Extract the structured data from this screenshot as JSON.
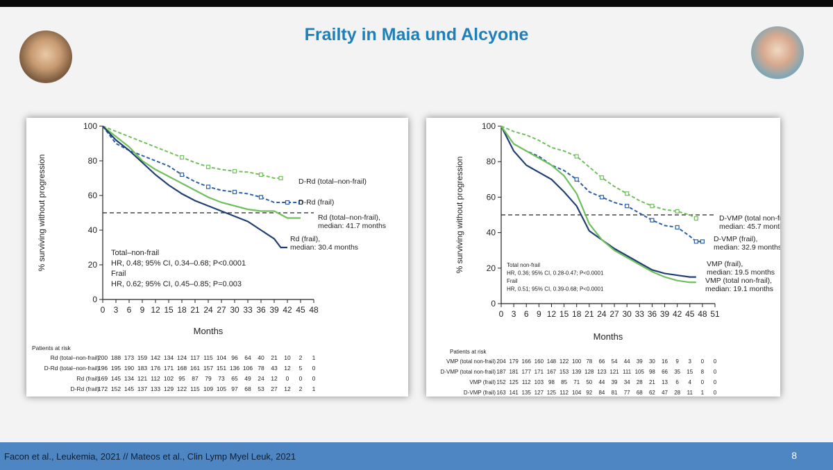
{
  "slide": {
    "title": "Frailty in Maia und Alcyone",
    "citation": "Facon et al., Leukemia, 2021 // Mateos et al., Clin Lymp Myel Leuk, 2021",
    "page_number": "8"
  },
  "chart_data": [
    {
      "type": "line",
      "title": "",
      "xlabel": "Months",
      "ylabel": "% surviving without progression",
      "xlim": [
        0,
        48
      ],
      "ylim": [
        0,
        100
      ],
      "x_ticks": [
        0,
        3,
        6,
        9,
        12,
        15,
        18,
        21,
        24,
        27,
        30,
        33,
        36,
        39,
        42,
        45,
        48
      ],
      "y_ticks": [
        0,
        20,
        40,
        60,
        80,
        100
      ],
      "reference_line_y": 50,
      "series": [
        {
          "name": "D-Rd (total–non-frail)",
          "color": "#6fbf5a",
          "style": "dashed-markers",
          "x": [
            0,
            3,
            6,
            9,
            12,
            15,
            18,
            21,
            24,
            27,
            30,
            33,
            36,
            39,
            40.5
          ],
          "y": [
            100,
            97,
            94,
            91,
            88,
            85,
            82,
            79,
            76.5,
            75,
            74,
            73.5,
            72,
            70,
            70
          ]
        },
        {
          "name": "D-Rd (frail)",
          "color": "#2a5ea8",
          "style": "dashed-markers",
          "x": [
            0,
            3,
            6,
            9,
            12,
            15,
            18,
            21,
            24,
            27,
            30,
            33,
            36,
            39,
            42,
            45
          ],
          "y": [
            100,
            90,
            86,
            83,
            80,
            77,
            72,
            68,
            65,
            63,
            62,
            61,
            59,
            56,
            56,
            56
          ]
        },
        {
          "name": "Rd (total–non-frail)",
          "color": "#6fbf5a",
          "style": "solid",
          "x": [
            0,
            3,
            6,
            9,
            12,
            15,
            18,
            21,
            24,
            27,
            30,
            33,
            36,
            39,
            42,
            45
          ],
          "y": [
            100,
            94,
            88,
            80,
            75,
            71,
            67,
            63,
            59,
            56,
            54,
            52,
            51,
            51,
            47,
            47
          ]
        },
        {
          "name": "Rd (frail)",
          "color": "#1f3f73",
          "style": "solid",
          "x": [
            0,
            3,
            6,
            9,
            12,
            15,
            18,
            21,
            24,
            27,
            30,
            33,
            36,
            39,
            40.5,
            42
          ],
          "y": [
            100,
            92,
            86,
            79,
            72,
            66,
            61,
            57,
            54,
            51,
            48,
            45,
            40,
            35,
            30,
            30
          ]
        }
      ],
      "series_labels": [
        {
          "lines": [
            "D-Rd (total–non-frail)"
          ]
        },
        {
          "lines": [
            "D-Rd (frail)"
          ]
        },
        {
          "lines": [
            "Rd (total–non-frail),",
            "median: 41.7 months"
          ]
        },
        {
          "lines": [
            "Rd (frail),",
            "median: 30.4 months"
          ]
        }
      ],
      "annotations": [
        "Total–non-frail",
        "HR, 0.48; 95% CI, 0.34–0.68; P<0.0001",
        "Frail",
        "HR, 0.62; 95% CI, 0.45–0.85; P=0.003"
      ],
      "risk_table": {
        "header": "Patients at risk",
        "rows": [
          {
            "label": "Rd (total–non-frail)",
            "values": [
              200,
              188,
              173,
              159,
              142,
              134,
              124,
              117,
              115,
              104,
              96,
              64,
              40,
              21,
              10,
              2,
              1
            ]
          },
          {
            "label": "D-Rd (total–non-frail)",
            "values": [
              196,
              195,
              190,
              183,
              176,
              171,
              168,
              161,
              157,
              151,
              136,
              106,
              78,
              43,
              12,
              5,
              0
            ]
          },
          {
            "label": "Rd (frail)",
            "values": [
              169,
              145,
              134,
              121,
              112,
              102,
              95,
              87,
              79,
              73,
              65,
              49,
              24,
              12,
              0,
              0,
              0
            ]
          },
          {
            "label": "D-Rd (frail)",
            "values": [
              172,
              152,
              145,
              137,
              133,
              129,
              122,
              115,
              109,
              105,
              97,
              68,
              53,
              27,
              12,
              2,
              1
            ]
          }
        ]
      }
    },
    {
      "type": "line",
      "title": "",
      "xlabel": "Months",
      "ylabel": "% surviving without progression",
      "xlim": [
        0,
        51
      ],
      "ylim": [
        0,
        100
      ],
      "x_ticks": [
        0,
        3,
        6,
        9,
        12,
        15,
        18,
        21,
        24,
        27,
        30,
        33,
        36,
        39,
        42,
        45,
        48,
        51
      ],
      "y_ticks": [
        0,
        20,
        40,
        60,
        80,
        100
      ],
      "reference_line_y": 50,
      "series": [
        {
          "name": "D-VMP (total non-frail)",
          "color": "#6fbf5a",
          "style": "dashed-markers",
          "x": [
            0,
            3,
            6,
            9,
            12,
            15,
            18,
            21,
            24,
            27,
            30,
            33,
            36,
            39,
            42,
            45,
            46.5
          ],
          "y": [
            100,
            97,
            95,
            92,
            88,
            86,
            83,
            77,
            71,
            66,
            62,
            58,
            55,
            53,
            52,
            50,
            48
          ]
        },
        {
          "name": "D-VMP (frail)",
          "color": "#2a5ea8",
          "style": "dashed-markers",
          "x": [
            0,
            3,
            6,
            9,
            12,
            15,
            18,
            21,
            24,
            27,
            30,
            33,
            36,
            39,
            42,
            45,
            46.5,
            48
          ],
          "y": [
            100,
            90,
            86,
            83,
            78,
            75,
            70,
            63,
            60,
            57,
            55,
            51,
            47,
            44,
            43,
            38,
            35,
            35
          ]
        },
        {
          "name": "VMP (frail)",
          "color": "#1f3f73",
          "style": "solid",
          "x": [
            0,
            3,
            6,
            9,
            12,
            15,
            18,
            21,
            24,
            27,
            30,
            33,
            36,
            39,
            42,
            45,
            46.5
          ],
          "y": [
            100,
            86,
            78,
            74,
            70,
            63,
            55,
            41,
            36,
            31,
            27,
            23,
            19,
            17,
            16,
            15,
            15
          ]
        },
        {
          "name": "VMP (total non-frail)",
          "color": "#6fbf5a",
          "style": "solid",
          "x": [
            0,
            3,
            6,
            9,
            12,
            15,
            18,
            21,
            24,
            27,
            30,
            33,
            36,
            39,
            42,
            45,
            46.5
          ],
          "y": [
            100,
            90,
            86,
            82,
            78,
            72,
            62,
            45,
            36,
            30,
            26,
            22,
            18,
            15,
            13,
            12,
            12
          ]
        }
      ],
      "series_labels": [
        {
          "lines": [
            "D-VMP (total non-frail),",
            "median: 45.7 months"
          ]
        },
        {
          "lines": [
            "D-VMP (frail),",
            "median: 32.9 months"
          ]
        },
        {
          "lines": [
            "VMP (frail),",
            "median: 19.5 months"
          ]
        },
        {
          "lines": [
            "VMP (total non-frail),",
            "median: 19.1 months"
          ]
        }
      ],
      "annotations": [
        "Total non-frail",
        "HR, 0.36; 95% CI, 0.28-0.47; P<0.0001",
        "Frail",
        "HR, 0.51; 95% CI, 0.39-0.68; P<0.0001"
      ],
      "risk_table": {
        "header": "Patients at risk",
        "rows": [
          {
            "label": "VMP (total non-frail)",
            "values": [
              204,
              179,
              166,
              160,
              148,
              122,
              100,
              78,
              66,
              54,
              44,
              39,
              30,
              16,
              9,
              3,
              0,
              0
            ]
          },
          {
            "label": "D-VMP (total non-frail)",
            "values": [
              187,
              181,
              177,
              171,
              167,
              153,
              139,
              128,
              123,
              121,
              111,
              105,
              98,
              66,
              35,
              15,
              8,
              0
            ]
          },
          {
            "label": "VMP (frail)",
            "values": [
              152,
              125,
              112,
              103,
              98,
              85,
              71,
              50,
              44,
              39,
              34,
              28,
              21,
              13,
              6,
              4,
              0,
              0
            ]
          },
          {
            "label": "D-VMP (frail)",
            "values": [
              163,
              141,
              135,
              127,
              125,
              112,
              104,
              92,
              84,
              81,
              77,
              68,
              62,
              47,
              28,
              11,
              1,
              0
            ]
          }
        ]
      }
    }
  ]
}
